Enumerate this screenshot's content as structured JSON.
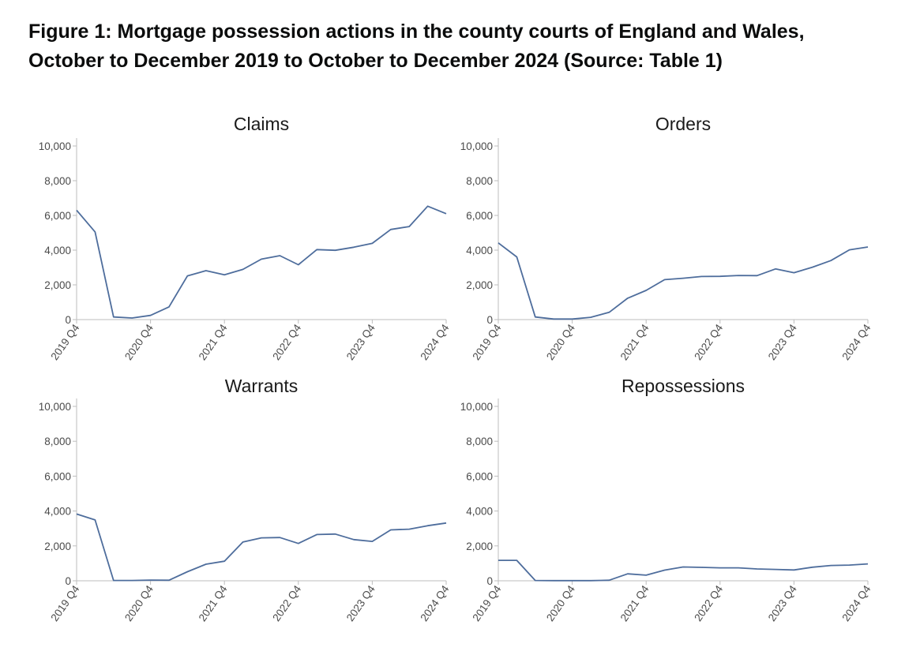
{
  "figure": {
    "title_line1": "Figure 1: Mortgage possession actions in the county courts of England and Wales,",
    "title_line2": "October to December 2019 to October to December 2024 (Source: Table 1)"
  },
  "colors": {
    "series": "#4e6d9c",
    "axis": "#bdbdbd",
    "text": "#4a4a4a"
  },
  "chart_data": [
    {
      "type": "line",
      "title": "Claims",
      "x": [
        "2019 Q4",
        "2020 Q1",
        "2020 Q2",
        "2020 Q3",
        "2020 Q4",
        "2021 Q1",
        "2021 Q2",
        "2021 Q3",
        "2021 Q4",
        "2022 Q1",
        "2022 Q2",
        "2022 Q3",
        "2022 Q4",
        "2023 Q1",
        "2023 Q2",
        "2023 Q3",
        "2023 Q4",
        "2024 Q1",
        "2024 Q2",
        "2024 Q3",
        "2024 Q4"
      ],
      "values": [
        6300,
        5050,
        150,
        90,
        240,
        730,
        2520,
        2820,
        2580,
        2890,
        3480,
        3680,
        3160,
        4030,
        3990,
        4170,
        4390,
        5190,
        5360,
        6530,
        6100
      ],
      "x_tick_labels": [
        "2019 Q4",
        "2020 Q4",
        "2021 Q4",
        "2022 Q4",
        "2023 Q4",
        "2024 Q4"
      ],
      "y_tick_labels": [
        "0",
        "2,000",
        "4,000",
        "6,000",
        "8,000",
        "10,000"
      ],
      "ylim": [
        0,
        10000
      ]
    },
    {
      "type": "line",
      "title": "Orders",
      "x": [
        "2019 Q4",
        "2020 Q1",
        "2020 Q2",
        "2020 Q3",
        "2020 Q4",
        "2021 Q1",
        "2021 Q2",
        "2021 Q3",
        "2021 Q4",
        "2022 Q1",
        "2022 Q2",
        "2022 Q3",
        "2022 Q4",
        "2023 Q1",
        "2023 Q2",
        "2023 Q3",
        "2023 Q4",
        "2024 Q1",
        "2024 Q2",
        "2024 Q3",
        "2024 Q4"
      ],
      "values": [
        4420,
        3610,
        150,
        30,
        30,
        130,
        420,
        1230,
        1680,
        2300,
        2380,
        2480,
        2490,
        2540,
        2530,
        2920,
        2700,
        3020,
        3400,
        4020,
        4180
      ],
      "x_tick_labels": [
        "2019 Q4",
        "2020 Q4",
        "2021 Q4",
        "2022 Q4",
        "2023 Q4",
        "2024 Q4"
      ],
      "y_tick_labels": [
        "0",
        "2,000",
        "4,000",
        "6,000",
        "8,000",
        "10,000"
      ],
      "ylim": [
        0,
        10000
      ]
    },
    {
      "type": "line",
      "title": "Warrants",
      "x": [
        "2019 Q4",
        "2020 Q1",
        "2020 Q2",
        "2020 Q3",
        "2020 Q4",
        "2021 Q1",
        "2021 Q2",
        "2021 Q3",
        "2021 Q4",
        "2022 Q1",
        "2022 Q2",
        "2022 Q3",
        "2022 Q4",
        "2023 Q1",
        "2023 Q2",
        "2023 Q3",
        "2023 Q4",
        "2024 Q1",
        "2024 Q2",
        "2024 Q3",
        "2024 Q4"
      ],
      "values": [
        3830,
        3490,
        20,
        20,
        40,
        30,
        520,
        950,
        1120,
        2220,
        2460,
        2480,
        2140,
        2650,
        2680,
        2360,
        2260,
        2920,
        2960,
        3160,
        3310
      ],
      "x_tick_labels": [
        "2019 Q4",
        "2020 Q4",
        "2021 Q4",
        "2022 Q4",
        "2023 Q4",
        "2024 Q4"
      ],
      "y_tick_labels": [
        "0",
        "2,000",
        "4,000",
        "6,000",
        "8,000",
        "10,000"
      ],
      "ylim": [
        0,
        10000
      ]
    },
    {
      "type": "line",
      "title": "Repossessions",
      "x": [
        "2019 Q4",
        "2020 Q1",
        "2020 Q2",
        "2020 Q3",
        "2020 Q4",
        "2021 Q1",
        "2021 Q2",
        "2021 Q3",
        "2021 Q4",
        "2022 Q1",
        "2022 Q2",
        "2022 Q3",
        "2022 Q4",
        "2023 Q1",
        "2023 Q2",
        "2023 Q3",
        "2023 Q4",
        "2024 Q1",
        "2024 Q2",
        "2024 Q3",
        "2024 Q4"
      ],
      "values": [
        1170,
        1170,
        20,
        10,
        10,
        10,
        30,
        400,
        320,
        610,
        790,
        770,
        740,
        740,
        680,
        650,
        620,
        780,
        880,
        900,
        970
      ],
      "x_tick_labels": [
        "2019 Q4",
        "2020 Q4",
        "2021 Q4",
        "2022 Q4",
        "2023 Q4",
        "2024 Q4"
      ],
      "y_tick_labels": [
        "0",
        "2,000",
        "4,000",
        "6,000",
        "8,000",
        "10,000"
      ],
      "ylim": [
        0,
        10000
      ]
    }
  ]
}
